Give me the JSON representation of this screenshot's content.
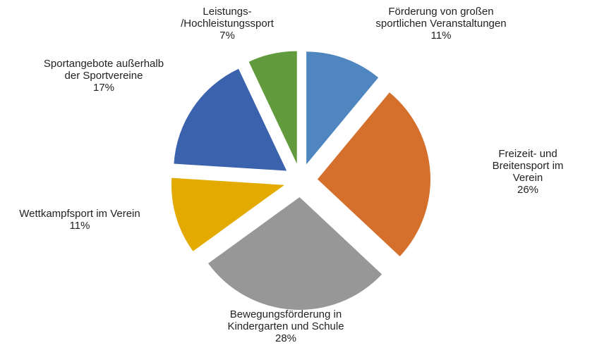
{
  "chart_data": {
    "type": "pie",
    "categories": [
      "Förderung von großen\nsportlichen Veranstaltungen",
      "Freizeit- und Breitensport im\nVerein",
      "Bewegungsförderung in\nKindergarten und Schule",
      "Wettkampfsport im Verein",
      "Sportangebote außerhalb\nder Sportvereine",
      "Leistungs-\n/Hochleistungssport"
    ],
    "values": [
      11,
      26,
      28,
      11,
      17,
      7
    ],
    "value_labels": [
      "11%",
      "26%",
      "28%",
      "11%",
      "17%",
      "7%"
    ],
    "colors": [
      "#4f86c0",
      "#d4702b",
      "#979797",
      "#e3aa00",
      "#3b62ad",
      "#629b3e"
    ]
  }
}
